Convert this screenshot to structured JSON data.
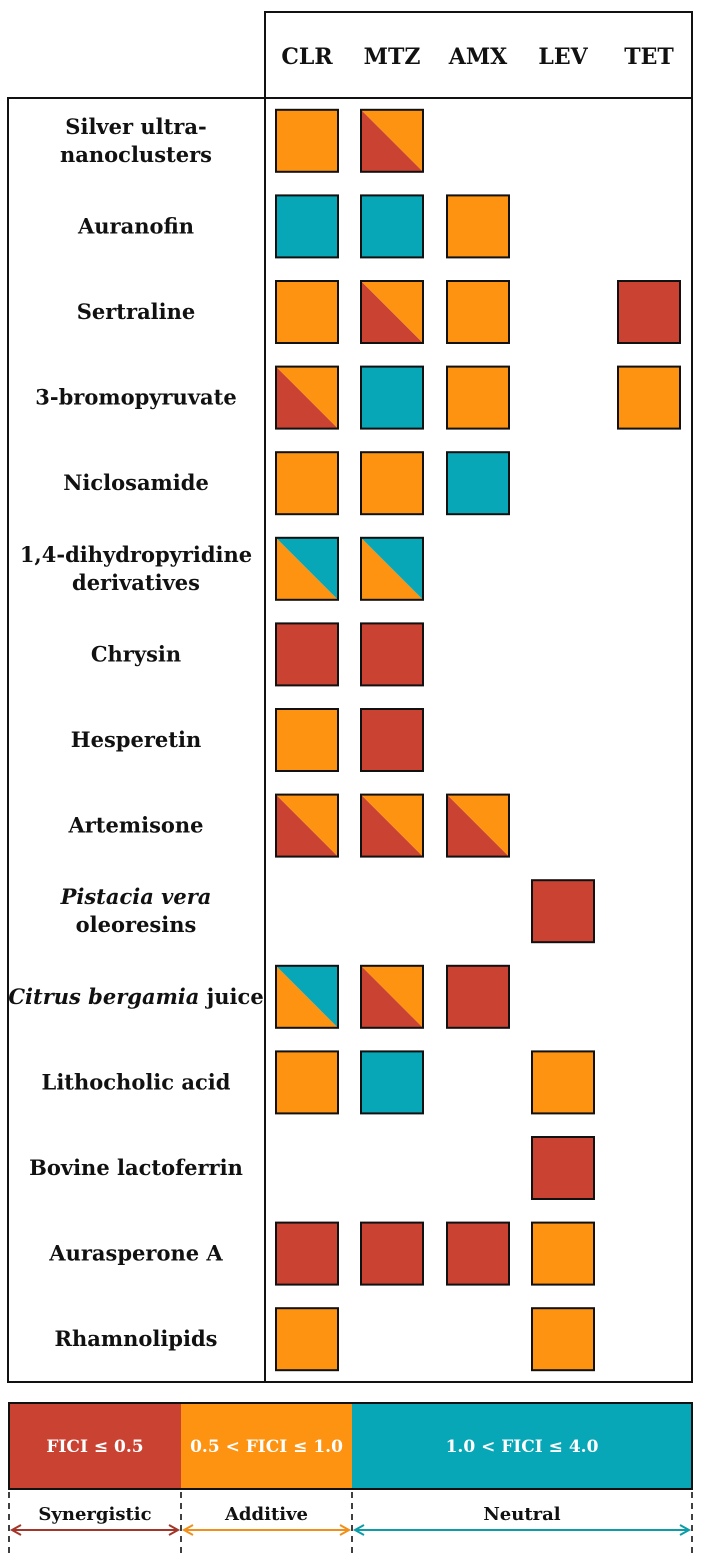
{
  "chart_data": {
    "type": "heatmap",
    "columns": [
      "CLR",
      "MTZ",
      "AMX",
      "LEV",
      "TET"
    ],
    "rows": [
      {
        "label_lines": [
          {
            "text": "Silver ultra-"
          },
          {
            "text": "nanoclusters"
          }
        ],
        "cells": [
          {
            "col": "CLR",
            "classes": [
              "additive"
            ]
          },
          {
            "col": "MTZ",
            "classes": [
              "synergistic",
              "additive"
            ]
          }
        ]
      },
      {
        "label_lines": [
          {
            "text": "Auranofin"
          }
        ],
        "cells": [
          {
            "col": "CLR",
            "classes": [
              "neutral"
            ]
          },
          {
            "col": "MTZ",
            "classes": [
              "neutral"
            ]
          },
          {
            "col": "AMX",
            "classes": [
              "additive"
            ]
          }
        ]
      },
      {
        "label_lines": [
          {
            "text": "Sertraline"
          }
        ],
        "cells": [
          {
            "col": "CLR",
            "classes": [
              "additive"
            ]
          },
          {
            "col": "MTZ",
            "classes": [
              "synergistic",
              "additive"
            ]
          },
          {
            "col": "AMX",
            "classes": [
              "additive"
            ]
          },
          {
            "col": "TET",
            "classes": [
              "synergistic"
            ]
          }
        ]
      },
      {
        "label_lines": [
          {
            "text": "3-bromopyruvate"
          }
        ],
        "cells": [
          {
            "col": "CLR",
            "classes": [
              "synergistic",
              "additive"
            ]
          },
          {
            "col": "MTZ",
            "classes": [
              "neutral"
            ]
          },
          {
            "col": "AMX",
            "classes": [
              "additive"
            ]
          },
          {
            "col": "TET",
            "classes": [
              "additive"
            ]
          }
        ]
      },
      {
        "label_lines": [
          {
            "text": "Niclosamide"
          }
        ],
        "cells": [
          {
            "col": "CLR",
            "classes": [
              "additive"
            ]
          },
          {
            "col": "MTZ",
            "classes": [
              "additive"
            ]
          },
          {
            "col": "AMX",
            "classes": [
              "neutral"
            ]
          }
        ]
      },
      {
        "label_lines": [
          {
            "text": "1,4-dihydropyridine"
          },
          {
            "text": "derivatives"
          }
        ],
        "cells": [
          {
            "col": "CLR",
            "classes": [
              "additive",
              "neutral"
            ]
          },
          {
            "col": "MTZ",
            "classes": [
              "additive",
              "neutral"
            ]
          }
        ]
      },
      {
        "label_lines": [
          {
            "text": "Chrysin"
          }
        ],
        "cells": [
          {
            "col": "CLR",
            "classes": [
              "synergistic"
            ]
          },
          {
            "col": "MTZ",
            "classes": [
              "synergistic"
            ]
          }
        ]
      },
      {
        "label_lines": [
          {
            "text": "Hesperetin"
          }
        ],
        "cells": [
          {
            "col": "CLR",
            "classes": [
              "additive"
            ]
          },
          {
            "col": "MTZ",
            "classes": [
              "synergistic"
            ]
          }
        ]
      },
      {
        "label_lines": [
          {
            "text": "Artemisone"
          }
        ],
        "cells": [
          {
            "col": "CLR",
            "classes": [
              "synergistic",
              "additive"
            ]
          },
          {
            "col": "MTZ",
            "classes": [
              "synergistic",
              "additive"
            ]
          },
          {
            "col": "AMX",
            "classes": [
              "synergistic",
              "additive"
            ]
          }
        ]
      },
      {
        "label_lines": [
          {
            "text": "Pistacia vera",
            "italic": true
          },
          {
            "text": "oleoresins"
          }
        ],
        "cells": [
          {
            "col": "LEV",
            "classes": [
              "synergistic"
            ]
          }
        ]
      },
      {
        "label_lines": [
          {
            "parts": [
              {
                "text": "Citrus bergamia",
                "italic": true
              },
              {
                "text": " juice"
              }
            ]
          }
        ],
        "cells": [
          {
            "col": "CLR",
            "classes": [
              "additive",
              "neutral"
            ]
          },
          {
            "col": "MTZ",
            "classes": [
              "synergistic",
              "additive"
            ]
          },
          {
            "col": "AMX",
            "classes": [
              "synergistic"
            ]
          }
        ]
      },
      {
        "label_lines": [
          {
            "text": "Lithocholic acid"
          }
        ],
        "cells": [
          {
            "col": "CLR",
            "classes": [
              "additive"
            ]
          },
          {
            "col": "MTZ",
            "classes": [
              "neutral"
            ]
          },
          {
            "col": "LEV",
            "classes": [
              "additive"
            ]
          }
        ]
      },
      {
        "label_lines": [
          {
            "text": "Bovine lactoferrin"
          }
        ],
        "cells": [
          {
            "col": "LEV",
            "classes": [
              "synergistic"
            ]
          }
        ]
      },
      {
        "label_lines": [
          {
            "text": "Aurasperone A"
          }
        ],
        "cells": [
          {
            "col": "CLR",
            "classes": [
              "synergistic"
            ]
          },
          {
            "col": "MTZ",
            "classes": [
              "synergistic"
            ]
          },
          {
            "col": "AMX",
            "classes": [
              "synergistic"
            ]
          },
          {
            "col": "LEV",
            "classes": [
              "additive"
            ]
          }
        ]
      },
      {
        "label_lines": [
          {
            "text": "Rhamnolipids"
          }
        ],
        "cells": [
          {
            "col": "CLR",
            "classes": [
              "additive"
            ]
          },
          {
            "col": "LEV",
            "classes": [
              "additive"
            ]
          }
        ]
      }
    ],
    "legend": [
      {
        "key": "synergistic",
        "range": "FICI ≤ 0.5",
        "category": "Synergistic",
        "color": "#c94232",
        "arrow_color": "#a33529"
      },
      {
        "key": "additive",
        "range": "0.5 < FICI ≤ 1.0",
        "category": "Additive",
        "color": "#fe9211",
        "arrow_color": "#f0901a"
      },
      {
        "key": "neutral",
        "range": "1.0 < FICI ≤ 4.0",
        "category": "Neutral",
        "color": "#08a7b7",
        "arrow_color": "#0d9da8"
      }
    ]
  }
}
